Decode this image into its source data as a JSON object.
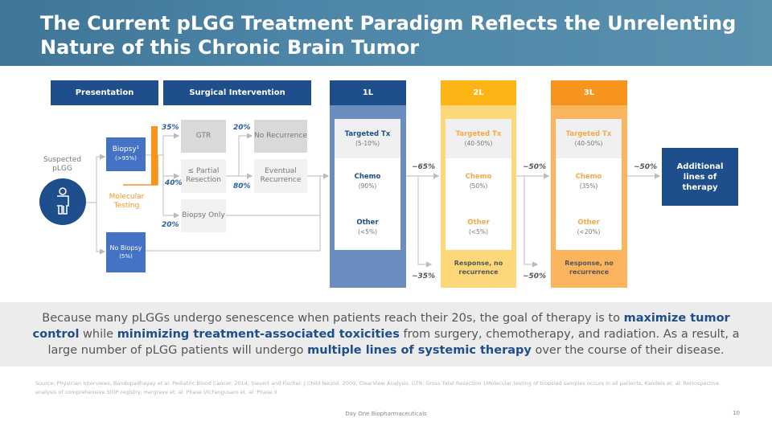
{
  "title": "The Current pLGG Treatment Paradigm Reflects the Unrelenting Nature of this Chronic Brain Tumor",
  "headers": {
    "presentation": "Presentation",
    "surgical": "Surgical Intervention",
    "l1": "1L",
    "l2": "2L",
    "l3": "3L"
  },
  "patient": {
    "label": "Suspected pLGG",
    "icon": "person-icon"
  },
  "biopsy": {
    "label": "Biopsy¹",
    "sub": "(>95%)"
  },
  "no_biopsy": {
    "label": "No Biopsy",
    "sub": "(5%)"
  },
  "molecular": "Molecular Testing",
  "surgery": {
    "gtr": "GTR",
    "partial": "≤ Partial Resection",
    "biopsy_only": "Biopsy Only",
    "gtr_pct": "35%",
    "partial_pct": "40%",
    "biopsy_only_pct": "20%"
  },
  "outcome": {
    "no_rec": "No Recurrence",
    "eventual": "Eventual Recurrence",
    "no_rec_pct": "20%",
    "eventual_pct": "80%"
  },
  "lines": [
    {
      "targeted": "Targeted Tx",
      "targeted_pct": "(5-10%)",
      "chemo": "Chemo",
      "chemo_pct": "(90%)",
      "other": "Other",
      "other_pct": "(<5%)"
    },
    {
      "targeted": "Targeted Tx",
      "targeted_pct": "(40-50%)",
      "chemo": "Chemo",
      "chemo_pct": "(50%)",
      "other": "Other",
      "other_pct": "(<5%)",
      "response": "Response, no recurrence"
    },
    {
      "targeted": "Targeted Tx",
      "targeted_pct": "(40-50%)",
      "chemo": "Chemo",
      "chemo_pct": "(35%)",
      "other": "Other",
      "other_pct": "(<20%)",
      "response": "Response, no recurrence"
    }
  ],
  "flows": {
    "l1_to_l2": "~65%",
    "l1_resp": "~35%",
    "l2_to_l3": "~50%",
    "l2_resp": "~50%",
    "l3_to_add": "~50%"
  },
  "additional": "Additional lines of therapy",
  "message": {
    "p1": "Because many pLGGs undergo senescence when patients reach their 20s, the goal of therapy is to ",
    "b1": "maximize tumor control",
    "p2": " while ",
    "b2": "minimizing treatment-associated toxicities",
    "p3": " from surgery, chemotherapy, and radiation.  As a result, a large number of pLGG patients will undergo ",
    "b3": "multiple lines of systemic therapy",
    "p4": " over the course of their disease."
  },
  "source": "Source: Physician Interviews, Bandopadhayay et al. Pediatric Blood Cancer. 2014; Sievert and Fischer. J Child Neurol. 2009; ClearView Analysis. GTR: Gross Total Resection 1Molecular testing of biopsied samples occurs in all patients. Kandels et. al. Retrospective analysis of comprehensive SIOP registry; Hargrave et. al. Phase I/II;Fangusaro et. al. Phase II",
  "footer": {
    "company": "Day One Biopharmaceuticals",
    "page": "10"
  },
  "colors": {
    "navy": "#1f4e8c",
    "blue": "#4472c4",
    "l1": "#6b8cbf",
    "l2": "#fdd87a",
    "l2_head": "#fdb515",
    "l3": "#fbb45e",
    "l3_head": "#f7941d"
  }
}
